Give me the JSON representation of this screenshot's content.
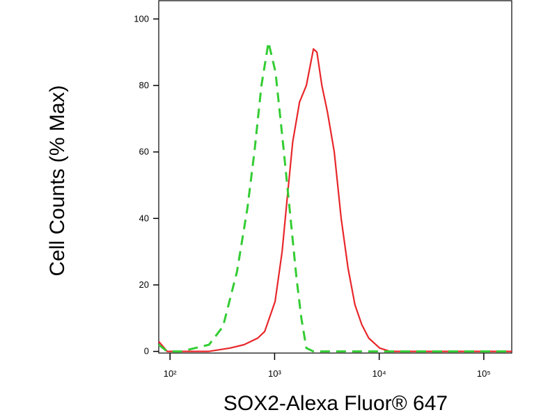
{
  "chart_data": {
    "type": "line",
    "xlabel": "SOX2-Alexa Fluor® 647",
    "ylabel": "Cell Counts (% Max)",
    "xscale": "log",
    "xlim": [
      78,
      185000
    ],
    "ylim": [
      -0.5,
      105.5
    ],
    "xticks": [
      {
        "value": 100,
        "label": "10²"
      },
      {
        "value": 1000,
        "label": "10³"
      },
      {
        "value": 10000,
        "label": "10⁴"
      },
      {
        "value": 100000,
        "label": "10⁵"
      }
    ],
    "yticks": [
      0,
      20,
      40,
      60,
      80,
      100
    ],
    "series": [
      {
        "color": "#e8262a",
        "dash": false,
        "x": [
          78,
          94,
          236,
          374,
          509,
          690,
          804,
          1010,
          1180,
          1310,
          1490,
          1730,
          2010,
          2350,
          2540,
          2830,
          3200,
          3720,
          4330,
          5040,
          5860,
          6820,
          7940,
          10100,
          12700,
          185000
        ],
        "values": [
          3,
          0,
          0,
          1,
          2,
          4,
          6,
          15,
          30,
          45,
          63,
          75,
          80,
          91,
          90,
          80,
          72,
          60,
          40,
          25,
          14,
          8,
          4,
          1,
          0,
          0
        ]
      },
      {
        "color": "#33cc33",
        "dash": true,
        "x": [
          78,
          94,
          128,
          174,
          236,
          321,
          437,
          549,
          641,
          748,
          873,
          1019,
          1190,
          1389,
          1620,
          1800,
          2010,
          2350,
          185000
        ],
        "values": [
          2,
          0,
          0,
          1,
          2,
          7.5,
          24,
          43,
          60,
          80,
          93,
          84,
          64,
          43,
          22,
          10,
          1,
          0,
          0
        ]
      }
    ]
  }
}
